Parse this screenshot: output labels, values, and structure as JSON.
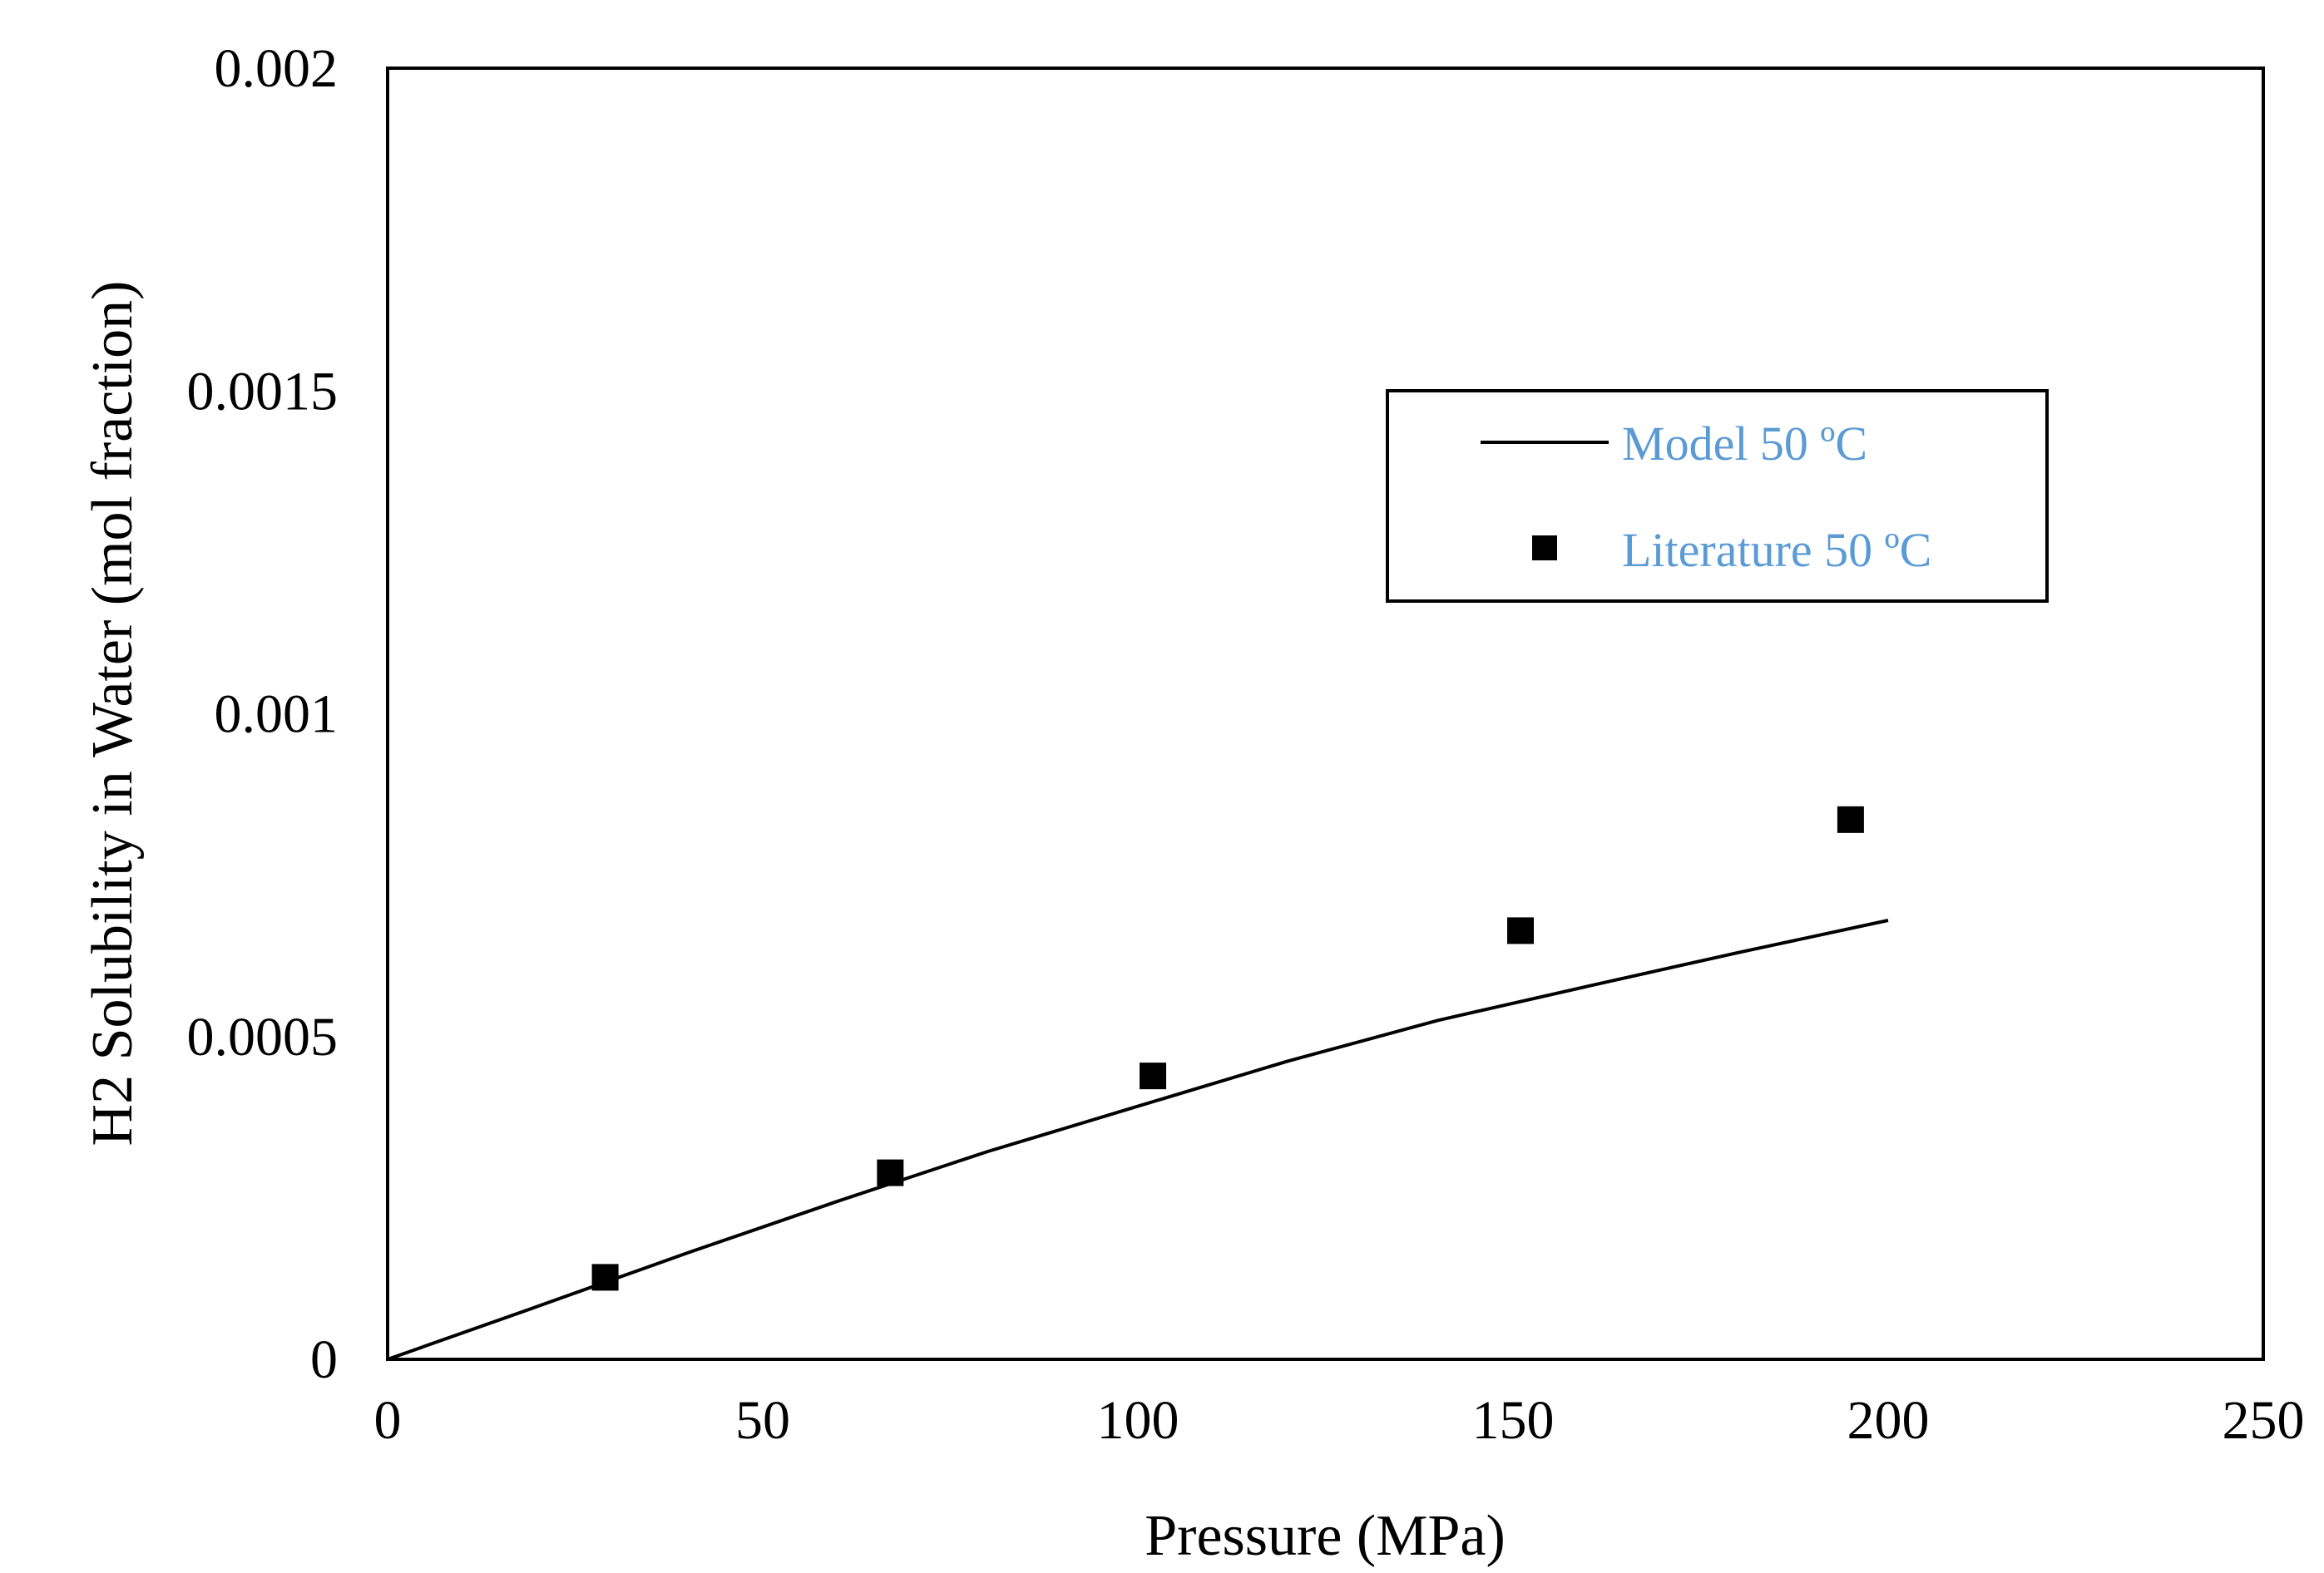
{
  "chart_data": {
    "type": "scatter",
    "title": "",
    "xlabel": "Pressure (MPa)",
    "ylabel": "H2 Solubility in Water (mol fraction)",
    "xlim": [
      0,
      250
    ],
    "ylim": [
      0,
      0.002
    ],
    "x_ticks": [
      0,
      50,
      100,
      150,
      200,
      250
    ],
    "x_tick_labels": [
      "0",
      "50",
      "100",
      "150",
      "200",
      "250"
    ],
    "y_ticks": [
      0,
      0.0005,
      0.001,
      0.0015,
      0.002
    ],
    "y_tick_labels": [
      "0",
      "0.0005",
      "0.001",
      "0.0015",
      "0.002"
    ],
    "grid": false,
    "legend_position": "upper-right",
    "series": [
      {
        "name": "Model 50 ºC",
        "kind": "line",
        "color": "#000000",
        "x": [
          0,
          20,
          40,
          60,
          80,
          100,
          120,
          140,
          160,
          180,
          200
        ],
        "y": [
          0,
          8.2e-05,
          0.000165,
          0.000245,
          0.000322,
          0.000392,
          0.000462,
          0.000525,
          0.000578,
          0.00063,
          0.00068
        ]
      },
      {
        "name": "Literature 50 ºC",
        "kind": "scatter",
        "marker": "square",
        "color": "#000000",
        "x": [
          29,
          67,
          102,
          151,
          195
        ],
        "y": [
          0.000127,
          0.000289,
          0.000439,
          0.000664,
          0.000836
        ]
      }
    ],
    "legend_text_color": "#5b9bd5"
  }
}
